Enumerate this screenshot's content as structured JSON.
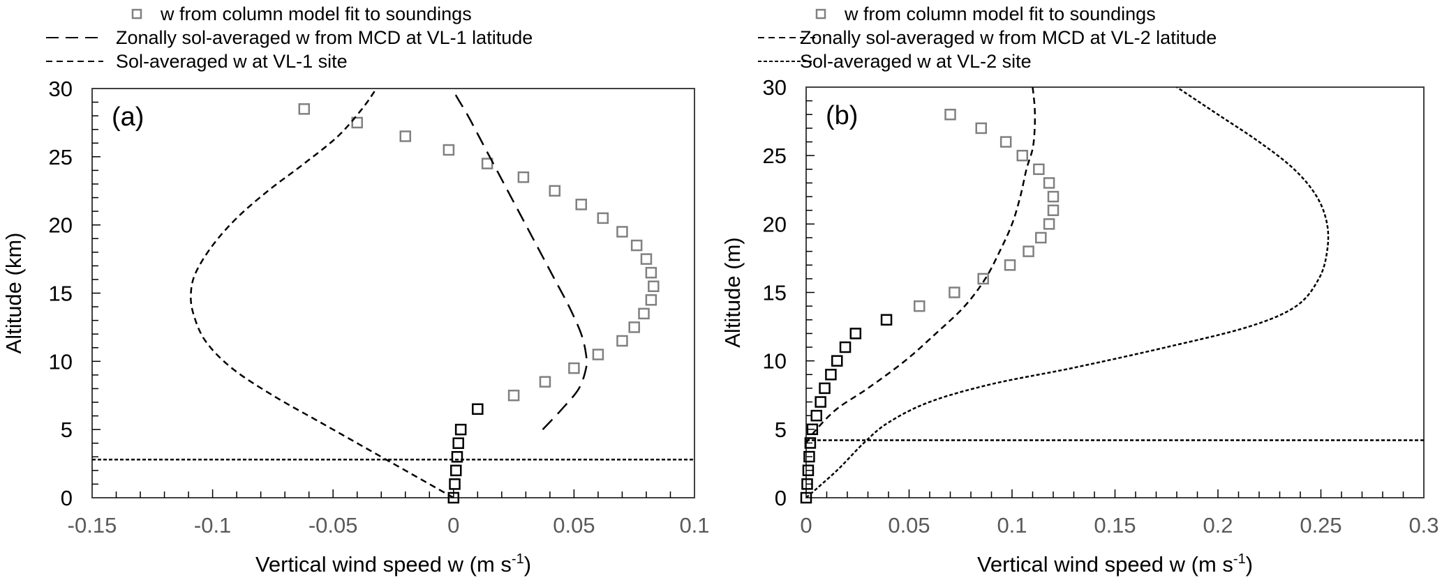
{
  "chart_data": [
    {
      "type": "scatter",
      "panel_label": "(a)",
      "xlabel": "Vertical wind speed w (m s",
      "xlabel_sup": "-1",
      "xlabel_end": ")",
      "ylabel": "Altitude (km)",
      "xlim": [
        -0.15,
        0.1
      ],
      "ylim": [
        0,
        30
      ],
      "xticks": [
        "-0.15",
        "-0.1",
        "-0.05",
        "0",
        "0.05",
        "0.1"
      ],
      "xtick_values": [
        -0.15,
        -0.1,
        -0.05,
        0,
        0.05,
        0.1
      ],
      "yticks": [
        "0",
        "5",
        "10",
        "15",
        "20",
        "25",
        "30"
      ],
      "ytick_values": [
        0,
        5,
        10,
        15,
        20,
        25,
        30
      ],
      "x_minor_step": 0.01,
      "y_minor_step": 1,
      "grid": false,
      "legend": [
        {
          "marker": "square",
          "label": "w from column model fit to soundings"
        },
        {
          "marker": "long-dash",
          "label": "Zonally sol-averaged w from MCD at VL-1 latitude"
        },
        {
          "marker": "short-dash",
          "label": "Sol-averaged w at VL-1 site"
        }
      ],
      "legend_position": "top-left, above plot",
      "horizontal_line": {
        "y": 2.8,
        "style": "dotted"
      },
      "series": [
        {
          "name": "w from column model fit to soundings (below 7 km)",
          "color": "#000000",
          "points": [
            [
              0.0,
              0.0
            ],
            [
              0.0005,
              1.0
            ],
            [
              0.001,
              2.0
            ],
            [
              0.0015,
              3.0
            ],
            [
              0.002,
              4.0
            ],
            [
              0.003,
              5.0
            ],
            [
              0.01,
              6.5
            ]
          ]
        },
        {
          "name": "w from column model fit to soundings (above 7 km)",
          "color": "#808080",
          "points": [
            [
              0.025,
              7.5
            ],
            [
              0.038,
              8.5
            ],
            [
              0.05,
              9.5
            ],
            [
              0.06,
              10.5
            ],
            [
              0.07,
              11.5
            ],
            [
              0.075,
              12.5
            ],
            [
              0.079,
              13.5
            ],
            [
              0.082,
              14.5
            ],
            [
              0.083,
              15.5
            ],
            [
              0.082,
              16.5
            ],
            [
              0.08,
              17.5
            ],
            [
              0.076,
              18.5
            ],
            [
              0.07,
              19.5
            ],
            [
              0.062,
              20.5
            ],
            [
              0.053,
              21.5
            ],
            [
              0.042,
              22.5
            ],
            [
              0.029,
              23.5
            ],
            [
              0.014,
              24.5
            ],
            [
              -0.002,
              25.5
            ],
            [
              -0.02,
              26.5
            ],
            [
              -0.04,
              27.5
            ],
            [
              -0.062,
              28.5
            ]
          ]
        },
        {
          "name": "Zonally sol-averaged w from MCD at VL-1 latitude",
          "style": "long-dash",
          "points": [
            [
              0.037,
              5.0
            ],
            [
              0.045,
              6.5
            ],
            [
              0.052,
              8.0
            ],
            [
              0.055,
              9.5
            ],
            [
              0.055,
              10.5
            ],
            [
              0.053,
              12.0
            ],
            [
              0.048,
              14.0
            ],
            [
              0.042,
              16.0
            ],
            [
              0.036,
              18.0
            ],
            [
              0.03,
              20.0
            ],
            [
              0.024,
              22.0
            ],
            [
              0.018,
              24.0
            ],
            [
              0.012,
              26.0
            ],
            [
              0.006,
              28.0
            ],
            [
              0.001,
              29.5
            ],
            [
              0.0,
              30.0
            ]
          ]
        },
        {
          "name": "Sol-averaged w at VL-1 site",
          "style": "short-dash",
          "points": [
            [
              0.0,
              0.0
            ],
            [
              -0.015,
              1.5
            ],
            [
              -0.035,
              3.5
            ],
            [
              -0.055,
              5.5
            ],
            [
              -0.075,
              7.5
            ],
            [
              -0.092,
              9.5
            ],
            [
              -0.103,
              11.5
            ],
            [
              -0.108,
              13.5
            ],
            [
              -0.109,
              15.0
            ],
            [
              -0.107,
              16.5
            ],
            [
              -0.1,
              18.5
            ],
            [
              -0.09,
              20.5
            ],
            [
              -0.077,
              22.5
            ],
            [
              -0.062,
              24.5
            ],
            [
              -0.048,
              26.5
            ],
            [
              -0.038,
              28.5
            ],
            [
              -0.032,
              30.0
            ]
          ]
        }
      ]
    },
    {
      "type": "scatter",
      "panel_label": "(b)",
      "xlabel": "Vertical wind speed w (m s",
      "xlabel_sup": "-1",
      "xlabel_end": ")",
      "ylabel": "Altitude (m)",
      "xlim": [
        0,
        0.3
      ],
      "ylim": [
        0,
        30
      ],
      "xticks": [
        "0",
        "0.05",
        "0.1",
        "0.15",
        "0.2",
        "0.25",
        "0.3"
      ],
      "xtick_values": [
        0,
        0.05,
        0.1,
        0.15,
        0.2,
        0.25,
        0.3
      ],
      "yticks": [
        "0",
        "5",
        "10",
        "15",
        "20",
        "25",
        "30"
      ],
      "ytick_values": [
        0,
        5,
        10,
        15,
        20,
        25,
        30
      ],
      "x_minor_step": 0.01,
      "y_minor_step": 1,
      "grid": false,
      "legend": [
        {
          "marker": "square",
          "label": "w from column model fit to soundings"
        },
        {
          "marker": "short-dash",
          "label": "Zonally sol-averaged w from MCD at VL-2 latitude"
        },
        {
          "marker": "dotted",
          "label": "Sol-averaged w at VL-2 site"
        }
      ],
      "legend_position": "top-left, above plot",
      "horizontal_line": {
        "y": 4.2,
        "style": "dotted"
      },
      "series": [
        {
          "name": "w from column model fit to soundings (below 13 km)",
          "color": "#000000",
          "points": [
            [
              0.0,
              0.0
            ],
            [
              0.0005,
              1.0
            ],
            [
              0.001,
              2.0
            ],
            [
              0.0015,
              3.0
            ],
            [
              0.002,
              4.0
            ],
            [
              0.003,
              5.0
            ],
            [
              0.005,
              6.0
            ],
            [
              0.007,
              7.0
            ],
            [
              0.009,
              8.0
            ],
            [
              0.012,
              9.0
            ],
            [
              0.015,
              10.0
            ],
            [
              0.019,
              11.0
            ],
            [
              0.024,
              12.0
            ],
            [
              0.039,
              13.0
            ]
          ]
        },
        {
          "name": "w from column model fit to soundings (above 13 km)",
          "color": "#808080",
          "points": [
            [
              0.055,
              14.0
            ],
            [
              0.072,
              15.0
            ],
            [
              0.086,
              16.0
            ],
            [
              0.099,
              17.0
            ],
            [
              0.108,
              18.0
            ],
            [
              0.114,
              19.0
            ],
            [
              0.118,
              20.0
            ],
            [
              0.12,
              21.0
            ],
            [
              0.12,
              22.0
            ],
            [
              0.118,
              23.0
            ],
            [
              0.113,
              24.0
            ],
            [
              0.105,
              25.0
            ],
            [
              0.097,
              26.0
            ],
            [
              0.085,
              27.0
            ],
            [
              0.07,
              28.0
            ]
          ]
        },
        {
          "name": "Zonally sol-averaged w from MCD at VL-2 latitude",
          "style": "short-dash",
          "points": [
            [
              0.0,
              4.0
            ],
            [
              0.005,
              5.0
            ],
            [
              0.015,
              6.5
            ],
            [
              0.03,
              8.0
            ],
            [
              0.048,
              10.0
            ],
            [
              0.063,
              12.0
            ],
            [
              0.077,
              14.0
            ],
            [
              0.087,
              16.0
            ],
            [
              0.094,
              18.0
            ],
            [
              0.1,
              20.0
            ],
            [
              0.104,
              22.0
            ],
            [
              0.107,
              24.0
            ],
            [
              0.11,
              25.5
            ],
            [
              0.111,
              27.0
            ],
            [
              0.111,
              28.5
            ],
            [
              0.11,
              30.0
            ]
          ]
        },
        {
          "name": "Sol-averaged w at VL-2 site",
          "style": "dotted",
          "points": [
            [
              0.0,
              0.0
            ],
            [
              0.015,
              2.0
            ],
            [
              0.028,
              4.0
            ],
            [
              0.04,
              5.5
            ],
            [
              0.06,
              7.0
            ],
            [
              0.09,
              8.3
            ],
            [
              0.13,
              9.5
            ],
            [
              0.175,
              11.0
            ],
            [
              0.215,
              12.5
            ],
            [
              0.238,
              14.0
            ],
            [
              0.249,
              16.0
            ],
            [
              0.253,
              18.0
            ],
            [
              0.253,
              20.0
            ],
            [
              0.248,
              22.0
            ],
            [
              0.237,
              24.0
            ],
            [
              0.22,
              26.0
            ],
            [
              0.2,
              28.0
            ],
            [
              0.18,
              30.0
            ]
          ]
        }
      ]
    }
  ]
}
